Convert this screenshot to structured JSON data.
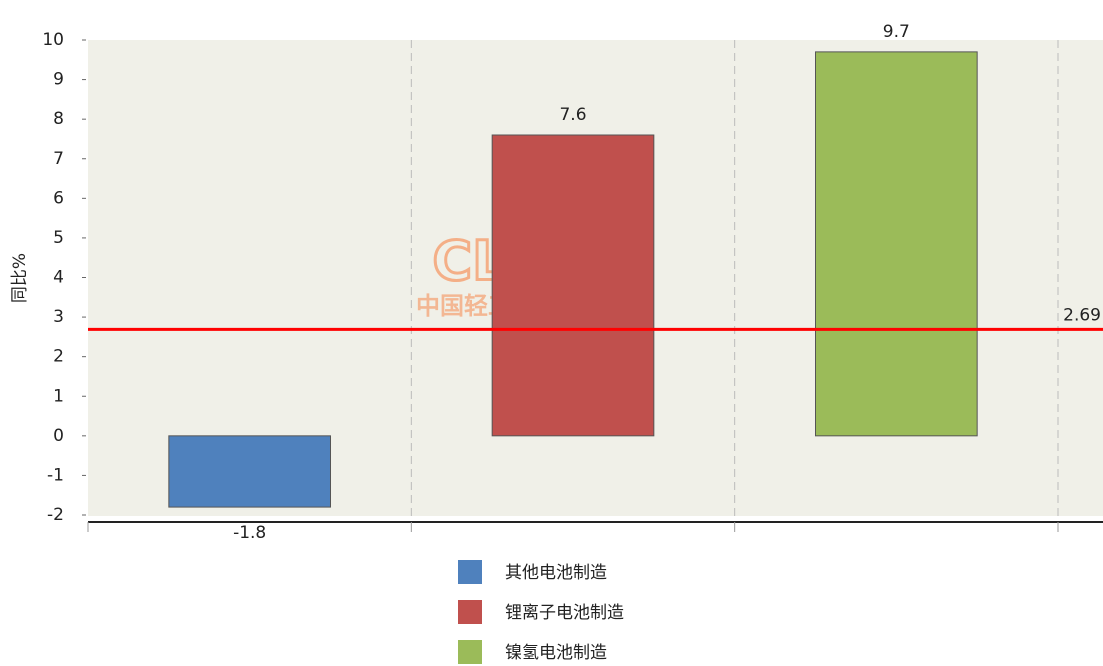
{
  "chart_data": {
    "type": "bar",
    "y_axis_label": "同比%",
    "watermark": {
      "logo": "CLii",
      "text": "中国轻工业网"
    },
    "categories": [
      null,
      null,
      null
    ],
    "series": [
      {
        "name": "其他电池制造",
        "color": "#4f81bd",
        "values": [
          -1.8,
          null,
          null
        ]
      },
      {
        "name": "锂离子电池制造",
        "color": "#c0504d",
        "values": [
          null,
          7.6,
          null
        ]
      },
      {
        "name": "镍氢电池制造",
        "color": "#9bbb59",
        "values": [
          null,
          null,
          9.7
        ]
      }
    ],
    "reference_line": {
      "value": 2.69,
      "color": "#ff0000"
    },
    "ylim": [
      -2,
      10
    ],
    "yticks": [
      -2,
      -1,
      0,
      1,
      2,
      3,
      4,
      5,
      6,
      7,
      8,
      9,
      10
    ],
    "grid": true,
    "legend": "bottom"
  }
}
